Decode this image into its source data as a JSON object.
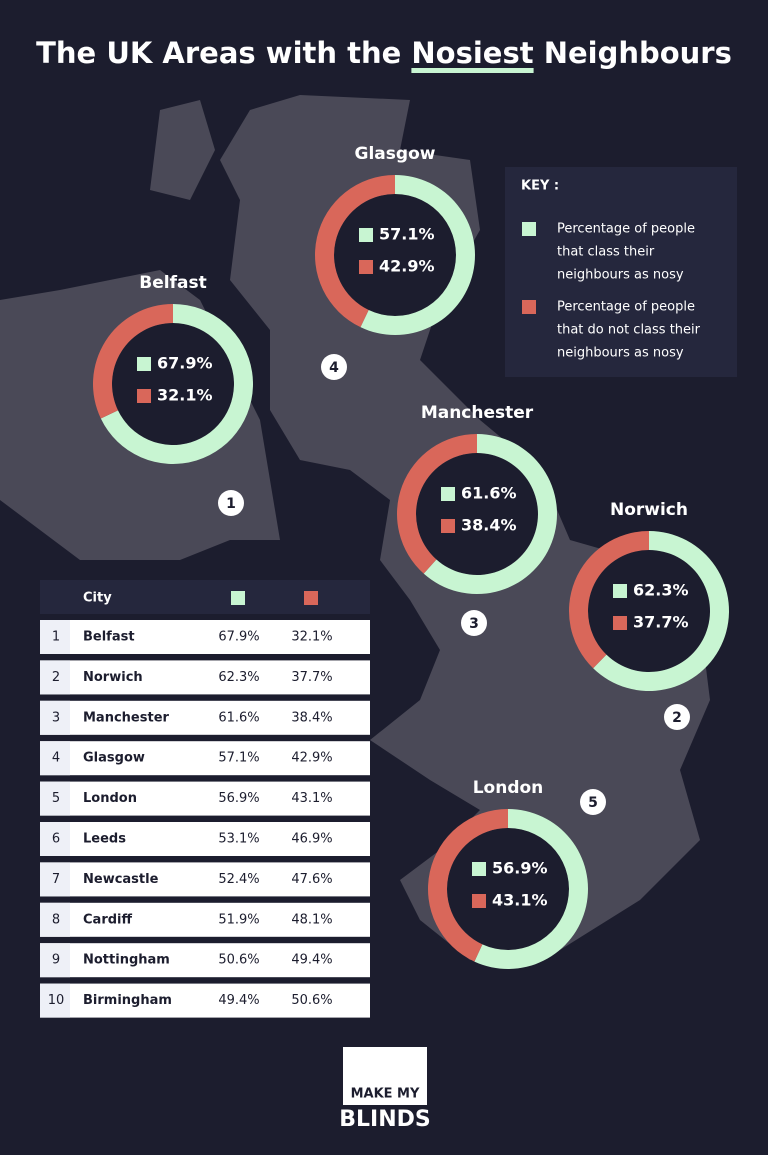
{
  "title_parts": [
    "The UK Areas with the ",
    "Nosiest",
    " Neighbours"
  ],
  "chart_data": [
    {
      "type": "pie",
      "title": "Glasgow",
      "rank": "4",
      "values": [
        57.1,
        42.9
      ],
      "value_labels": [
        "57.1%",
        "42.9%"
      ],
      "colors": [
        "#c8f5d2",
        "#d9675a"
      ]
    },
    {
      "type": "pie",
      "title": "Belfast",
      "rank": "1",
      "values": [
        67.9,
        32.1
      ],
      "value_labels": [
        "67.9%",
        "32.1%"
      ],
      "colors": [
        "#c8f5d2",
        "#d9675a"
      ]
    },
    {
      "type": "pie",
      "title": "Manchester",
      "rank": "3",
      "values": [
        61.6,
        38.4
      ],
      "value_labels": [
        "61.6%",
        "38.4%"
      ],
      "colors": [
        "#c8f5d2",
        "#d9675a"
      ]
    },
    {
      "type": "pie",
      "title": "Norwich",
      "rank": "2",
      "values": [
        62.3,
        37.7
      ],
      "value_labels": [
        "62.3%",
        "37.7%"
      ],
      "colors": [
        "#c8f5d2",
        "#d9675a"
      ]
    },
    {
      "type": "pie",
      "title": "London",
      "rank": "5",
      "values": [
        56.9,
        43.1
      ],
      "value_labels": [
        "56.9%",
        "43.1%"
      ],
      "colors": [
        "#c8f5d2",
        "#d9675a"
      ]
    }
  ],
  "key": {
    "title": "KEY :",
    "items": [
      {
        "lines": [
          "Percentage of people",
          "that class their",
          "neighbours as nosy"
        ],
        "color": "#c8f5d2"
      },
      {
        "lines": [
          "Percentage of people",
          "that do not class their",
          "neighbours as nosy"
        ],
        "color": "#d9675a"
      }
    ]
  },
  "table": {
    "header": "City",
    "rows": [
      [
        "1",
        "Belfast",
        "67.9%",
        "32.1%"
      ],
      [
        "2",
        "Norwich",
        "62.3%",
        "37.7%"
      ],
      [
        "3",
        "Manchester",
        "61.6%",
        "38.4%"
      ],
      [
        "4",
        "Glasgow",
        "57.1%",
        "42.9%"
      ],
      [
        "5",
        "London",
        "56.9%",
        "43.1%"
      ],
      [
        "6",
        "Leeds",
        "53.1%",
        "46.9%"
      ],
      [
        "7",
        "Newcastle",
        "52.4%",
        "47.6%"
      ],
      [
        "8",
        "Cardiff",
        "51.9%",
        "48.1%"
      ],
      [
        "9",
        "Nottingham",
        "50.6%",
        "49.4%"
      ],
      [
        "10",
        "Birmingham",
        "49.4%",
        "50.6%"
      ]
    ]
  },
  "logo": {
    "line1": "MAKE MY",
    "line2": "BLINDS"
  }
}
